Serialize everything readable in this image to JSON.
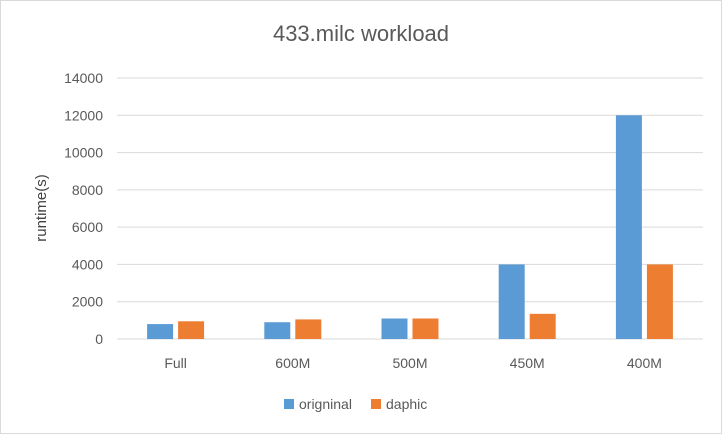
{
  "chart_data": {
    "type": "bar",
    "title": "433.milc workload",
    "xlabel": "",
    "ylabel": "runtime(s)",
    "categories": [
      "Full",
      "600M",
      "500M",
      "450M",
      "400M"
    ],
    "series": [
      {
        "name": "origninal",
        "color": "#5b9bd5",
        "values": [
          800,
          900,
          1100,
          4000,
          12000
        ]
      },
      {
        "name": "daphic",
        "color": "#ed7d31",
        "values": [
          950,
          1050,
          1100,
          1350,
          4000
        ]
      }
    ],
    "ylim": [
      0,
      14000
    ],
    "yticks": [
      0,
      2000,
      4000,
      6000,
      8000,
      10000,
      12000,
      14000
    ],
    "grid": true,
    "legend_position": "bottom-center"
  }
}
